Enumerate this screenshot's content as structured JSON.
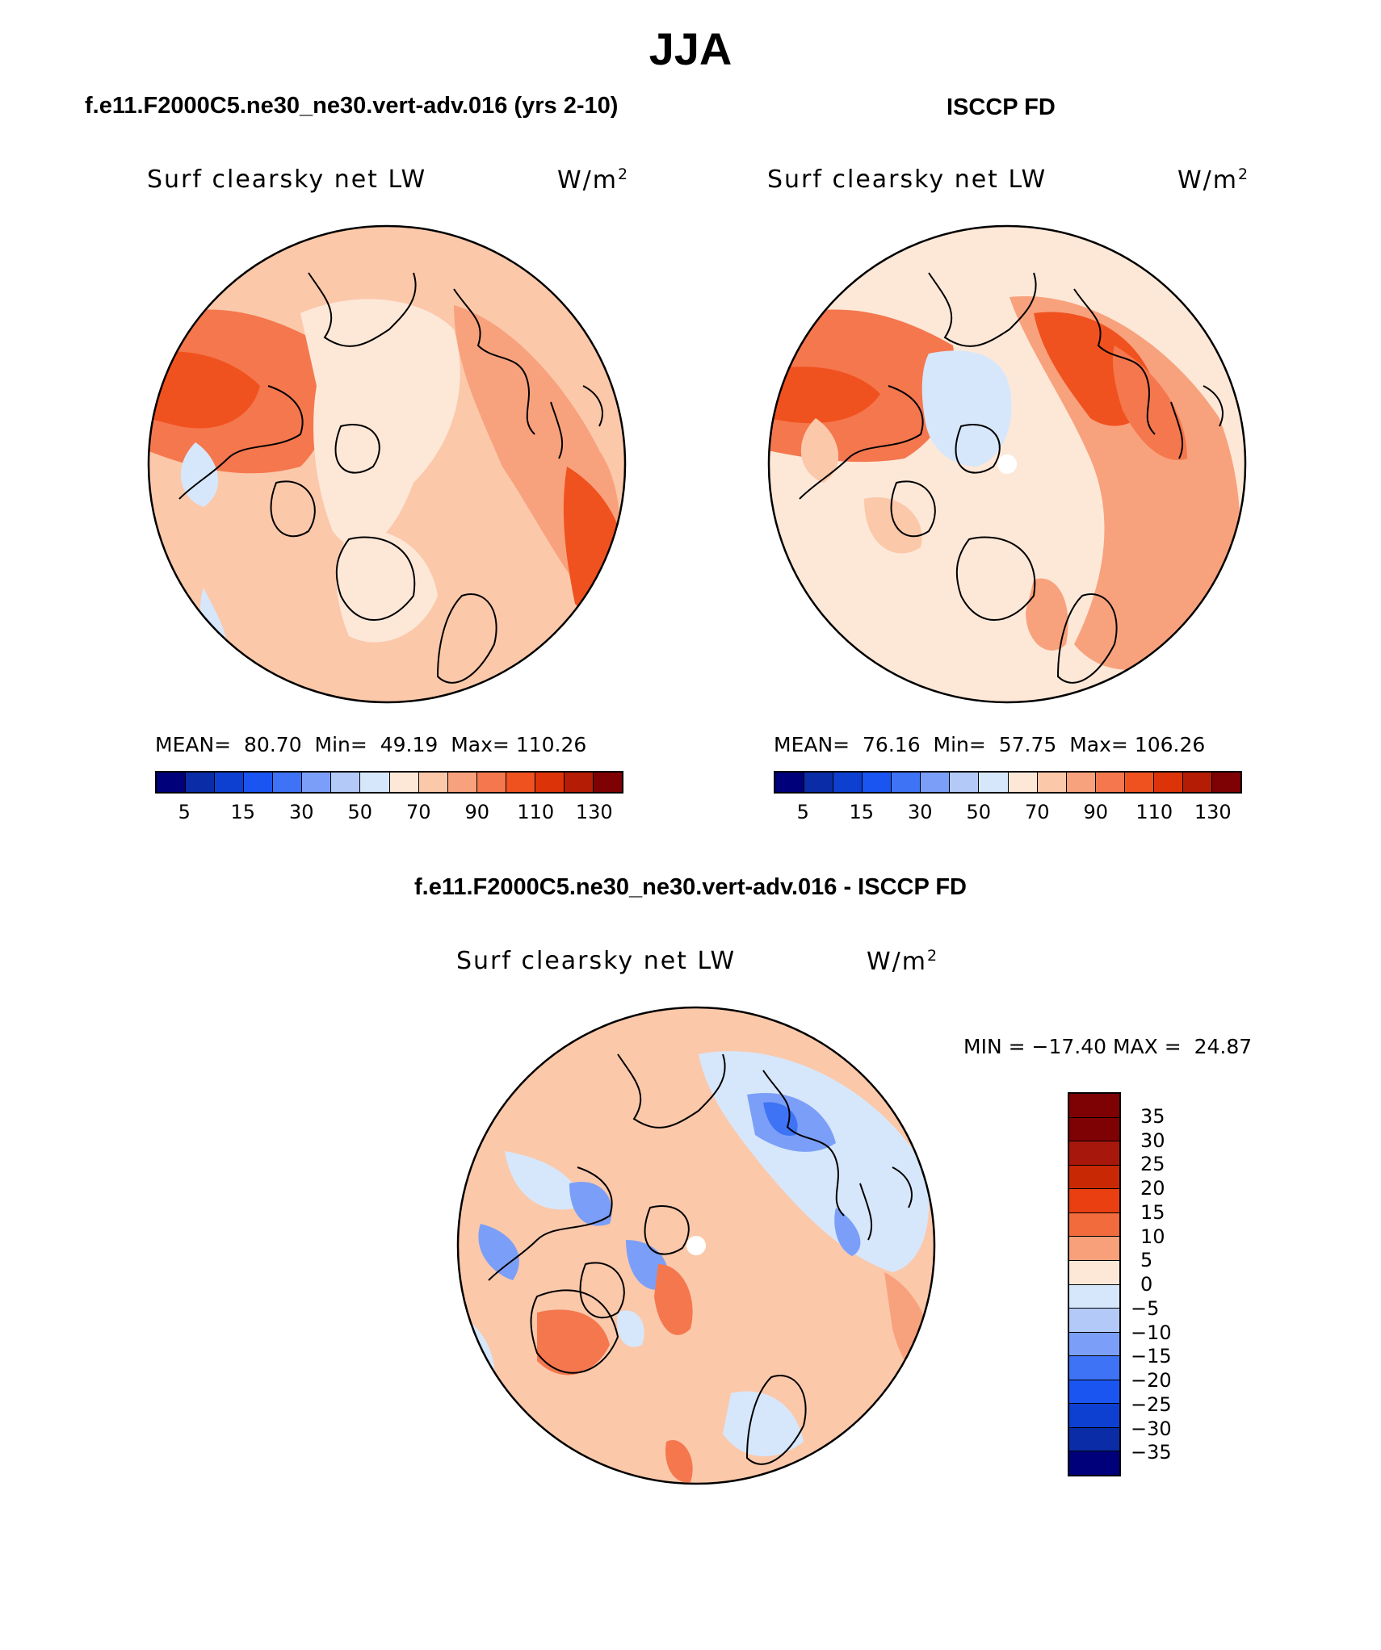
{
  "title": "JJA",
  "chart_data": [
    {
      "type": "heatmap",
      "projection": "north polar stereographic",
      "case": "f.e11.F2000C5.ne30_ne30.vert-adv.016 (yrs 2-10)",
      "variable": "Surf clearsky net LW",
      "units": "W/m",
      "units_exp": "2",
      "stats": {
        "mean_label": "MEAN=",
        "mean": "80.70",
        "min_label": "Min=",
        "min": "49.19",
        "max_label": "Max=",
        "max": "110.26"
      },
      "colorbar_ticks": [
        "5",
        "15",
        "30",
        "50",
        "70",
        "90",
        "110",
        "130"
      ]
    },
    {
      "type": "heatmap",
      "projection": "north polar stereographic",
      "case": "ISCCP FD",
      "variable": "Surf clearsky net LW",
      "units": "W/m",
      "units_exp": "2",
      "stats": {
        "mean_label": "MEAN=",
        "mean": "76.16",
        "min_label": "Min=",
        "min": "57.75",
        "max_label": "Max=",
        "max": "106.26"
      },
      "colorbar_ticks": [
        "5",
        "15",
        "30",
        "50",
        "70",
        "90",
        "110",
        "130"
      ]
    },
    {
      "type": "heatmap",
      "projection": "north polar stereographic",
      "case": "f.e11.F2000C5.ne30_ne30.vert-adv.016 - ISCCP FD",
      "variable": "Surf clearsky net LW",
      "units": "W/m",
      "units_exp": "2",
      "stats": {
        "min_label": "MIN =",
        "min": "−17.40",
        "max_label": "MAX =",
        "max": "24.87"
      },
      "colorbar_ticks": [
        "35",
        "30",
        "25",
        "20",
        "15",
        "10",
        "5",
        "0",
        "−5",
        "−10",
        "−15",
        "−20",
        "−25",
        "−30",
        "−35"
      ]
    }
  ],
  "palette_abs": [
    "#00007a",
    "#0a2ca6",
    "#0d3fd1",
    "#1a55f2",
    "#3e73f5",
    "#7b9ff8",
    "#b3caf9",
    "#d6e7fb",
    "#fde8d8",
    "#fbc8aa",
    "#f8a27d",
    "#f5774e",
    "#f0521f",
    "#dc3408",
    "#b51c05",
    "#7e0204"
  ],
  "palette_diff": [
    "#7e0204",
    "#a8170b",
    "#c92805",
    "#ea3f10",
    "#f26b3d",
    "#f7a07a",
    "#fde8d8",
    "#d6e7fb",
    "#b3caf9",
    "#7b9ff8",
    "#3e73f5",
    "#1a55f2",
    "#0d3fd1",
    "#0a2ca6",
    "#00007a"
  ]
}
